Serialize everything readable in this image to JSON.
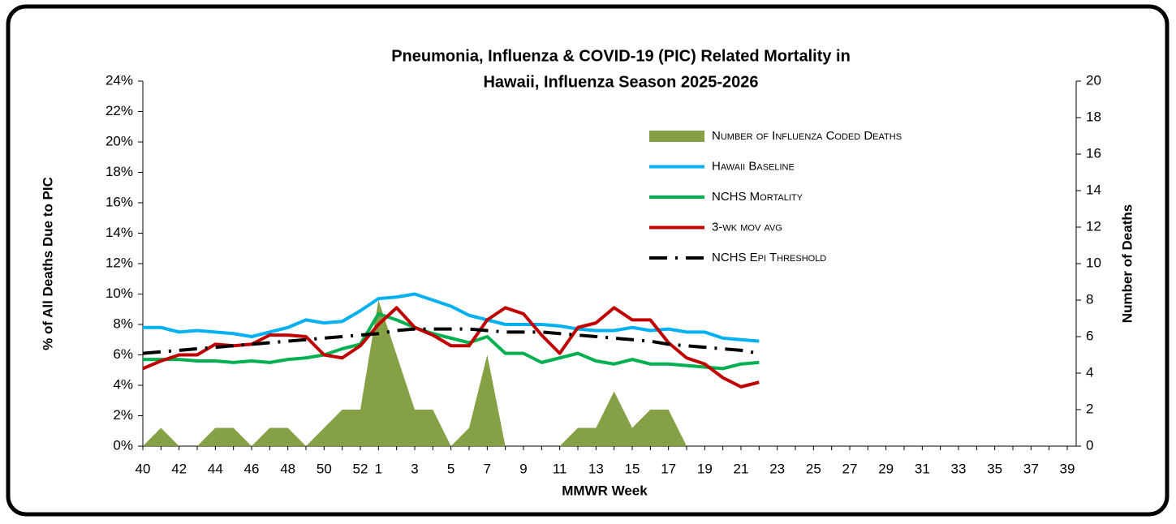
{
  "chart_data": {
    "type": "combo",
    "title": [
      "Pneumonia, Influenza & COVID-19 (PIC) Related Mortality in",
      "Hawaii, Influenza Season 2025-2026"
    ],
    "x_label": "MMWR Week",
    "y_label": "% of All Deaths Due to PIC",
    "y2_label": "Number of Deaths",
    "categories": [
      "40",
      null,
      "42",
      null,
      "44",
      null,
      "46",
      null,
      "48",
      null,
      "50",
      null,
      "52",
      "1",
      null,
      "3",
      null,
      "5",
      null,
      "7",
      null,
      "9",
      null,
      "11",
      null,
      "13",
      null,
      "15",
      null,
      "17",
      null,
      "19",
      null,
      "21",
      null,
      "23",
      null,
      "25",
      null,
      "27",
      null,
      "29",
      null,
      "31",
      null,
      "33",
      null,
      "35",
      null,
      "37",
      null,
      "39"
    ],
    "ylim": [
      0,
      24
    ],
    "yticks": [
      {
        "value": 0,
        "label": "0%"
      },
      {
        "value": 2,
        "label": "2%"
      },
      {
        "value": 4,
        "label": "4%"
      },
      {
        "value": 6,
        "label": "6%"
      },
      {
        "value": 8,
        "label": "8%"
      },
      {
        "value": 10,
        "label": "10%"
      },
      {
        "value": 12,
        "label": "12%"
      },
      {
        "value": 14,
        "label": "14%"
      },
      {
        "value": 16,
        "label": "16%"
      },
      {
        "value": 18,
        "label": "18%"
      },
      {
        "value": 20,
        "label": "20%"
      },
      {
        "value": 22,
        "label": "22%"
      },
      {
        "value": 24,
        "label": "24%"
      }
    ],
    "y2lim": [
      0,
      20
    ],
    "y2ticks": [
      0,
      2,
      4,
      6,
      8,
      10,
      12,
      14,
      16,
      18,
      20
    ],
    "grid": false,
    "legend": "upper right",
    "series": [
      {
        "name": "Number of Influenza Coded Deaths",
        "type": "area",
        "axis": "y2",
        "color": "#86a046",
        "values": [
          0,
          1,
          0,
          0,
          1,
          1,
          0,
          1,
          1,
          0,
          1,
          2,
          2,
          8,
          5,
          2,
          2,
          0,
          1,
          5,
          0,
          0,
          0,
          0,
          1,
          1,
          3,
          1,
          2,
          2,
          0,
          null,
          null,
          null,
          null,
          null,
          null,
          null,
          null,
          null,
          null,
          null,
          null,
          null,
          null,
          null,
          null,
          null,
          null,
          null,
          null,
          null
        ]
      },
      {
        "name": "Hawaii Baseline",
        "type": "line",
        "axis": "y",
        "color": "#00b0f0",
        "dashed": false,
        "values": [
          7.8,
          7.8,
          7.5,
          7.6,
          7.5,
          7.4,
          7.2,
          7.5,
          7.8,
          8.3,
          8.1,
          8.2,
          8.9,
          9.7,
          9.8,
          10.0,
          9.6,
          9.2,
          8.6,
          8.3,
          8.0,
          8.0,
          8.0,
          7.9,
          7.7,
          7.6,
          7.6,
          7.8,
          7.6,
          7.7,
          7.5,
          7.5,
          7.1,
          7.0,
          6.9,
          null,
          null,
          null,
          null,
          null,
          null,
          null,
          null,
          null,
          null,
          null,
          null,
          null,
          null,
          null,
          null,
          null
        ]
      },
      {
        "name": "NCHS Mortality",
        "type": "line",
        "axis": "y",
        "color": "#00b050",
        "dashed": false,
        "values": [
          5.7,
          5.7,
          5.7,
          5.6,
          5.6,
          5.5,
          5.6,
          5.5,
          5.7,
          5.8,
          6.0,
          6.4,
          6.7,
          8.7,
          8.3,
          7.8,
          7.4,
          7.1,
          6.8,
          7.2,
          6.1,
          6.1,
          5.5,
          5.8,
          6.1,
          5.6,
          5.4,
          5.7,
          5.4,
          5.4,
          5.3,
          5.2,
          5.1,
          5.4,
          5.5,
          null,
          null,
          null,
          null,
          null,
          null,
          null,
          null,
          null,
          null,
          null,
          null,
          null,
          null,
          null,
          null,
          null
        ]
      },
      {
        "name": "3-wk mov avg",
        "type": "line",
        "axis": "y",
        "color": "#c00000",
        "dashed": false,
        "values": [
          5.1,
          5.6,
          6.0,
          6.0,
          6.7,
          6.6,
          6.7,
          7.3,
          7.3,
          7.2,
          6.0,
          5.8,
          6.6,
          8.0,
          9.1,
          7.8,
          7.3,
          6.6,
          6.6,
          8.3,
          9.1,
          8.7,
          7.3,
          6.1,
          7.8,
          8.1,
          9.1,
          8.3,
          8.3,
          6.8,
          5.8,
          5.4,
          4.5,
          3.9,
          4.2,
          null,
          null,
          null,
          null,
          null,
          null,
          null,
          null,
          null,
          null,
          null,
          null,
          null,
          null,
          null,
          null,
          null
        ]
      },
      {
        "name": "NCHS Epi Threshold",
        "type": "line",
        "axis": "y",
        "color": "#000000",
        "dashed": true,
        "values": [
          6.1,
          6.2,
          6.3,
          6.4,
          6.5,
          6.6,
          6.7,
          6.8,
          6.9,
          7.0,
          7.1,
          7.2,
          7.3,
          7.4,
          7.6,
          7.7,
          7.7,
          7.7,
          7.7,
          7.6,
          7.5,
          7.5,
          7.5,
          7.4,
          7.3,
          7.2,
          7.1,
          7.0,
          6.9,
          6.7,
          6.6,
          6.5,
          6.4,
          6.3,
          6.1,
          null,
          null,
          null,
          null,
          null,
          null,
          null,
          null,
          null,
          null,
          null,
          null,
          null,
          null,
          null,
          null,
          null
        ]
      }
    ]
  }
}
